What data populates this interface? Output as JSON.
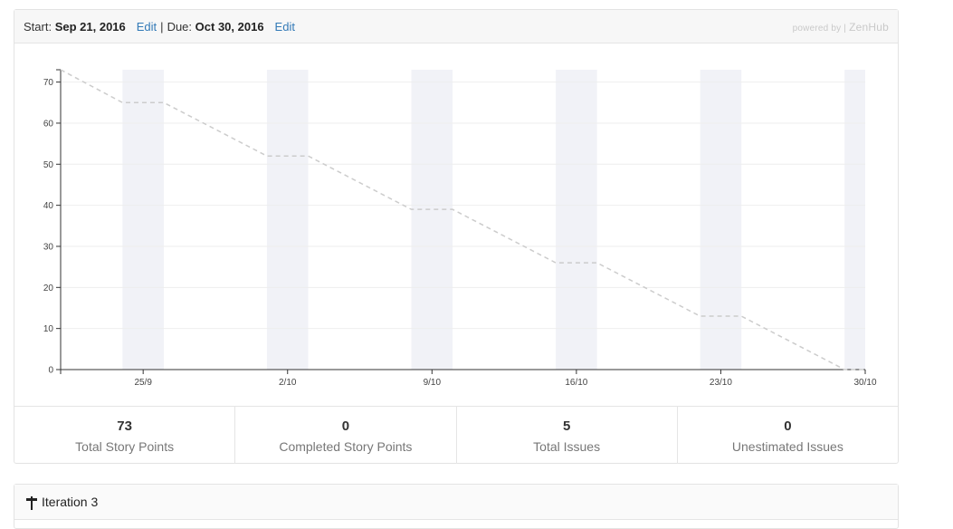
{
  "header": {
    "start_label": "Start:",
    "start_date": "Sep 21, 2016",
    "edit_label": "Edit",
    "separator": "|",
    "due_label": "Due:",
    "due_date": "Oct 30, 2016",
    "powered_by": "powered by |",
    "brand": "ZenHub"
  },
  "chart_data": {
    "type": "line",
    "title": "",
    "xlabel": "",
    "ylabel": "",
    "ylim": [
      0,
      73
    ],
    "yticks": [
      0,
      10,
      20,
      30,
      40,
      50,
      60,
      70
    ],
    "xlim": [
      "2016-09-21",
      "2016-10-30"
    ],
    "xticks": [
      "25/9",
      "2/10",
      "9/10",
      "16/10",
      "23/10",
      "30/10"
    ],
    "xtick_dates": [
      "2016-09-25",
      "2016-10-02",
      "2016-10-09",
      "2016-10-16",
      "2016-10-23",
      "2016-10-30"
    ],
    "weekend_bands": [
      [
        "2016-09-24",
        "2016-09-26"
      ],
      [
        "2016-10-01",
        "2016-10-03"
      ],
      [
        "2016-10-08",
        "2016-10-10"
      ],
      [
        "2016-10-15",
        "2016-10-17"
      ],
      [
        "2016-10-22",
        "2016-10-24"
      ],
      [
        "2016-10-29",
        "2016-10-30"
      ]
    ],
    "series": [
      {
        "style": "dashed",
        "color": "#cccccc",
        "x": [
          "2016-09-21",
          "2016-09-24",
          "2016-09-26",
          "2016-10-01",
          "2016-10-03",
          "2016-10-08",
          "2016-10-10",
          "2016-10-15",
          "2016-10-17",
          "2016-10-22",
          "2016-10-24",
          "2016-10-29",
          "2016-10-30"
        ],
        "y": [
          73,
          65,
          65,
          52,
          52,
          39,
          39,
          26,
          26,
          13,
          13,
          0,
          0
        ]
      }
    ],
    "grid": true,
    "legend": "none",
    "band_color": "#f1f2f7",
    "axis_color": "#333333",
    "grid_color": "#eeeeee"
  },
  "stats": [
    {
      "value": "73",
      "label": "Total Story Points"
    },
    {
      "value": "0",
      "label": "Completed Story Points"
    },
    {
      "value": "5",
      "label": "Total Issues"
    },
    {
      "value": "0",
      "label": "Unestimated Issues"
    }
  ],
  "iteration": {
    "icon": "milestone-icon",
    "title": "Iteration 3"
  }
}
